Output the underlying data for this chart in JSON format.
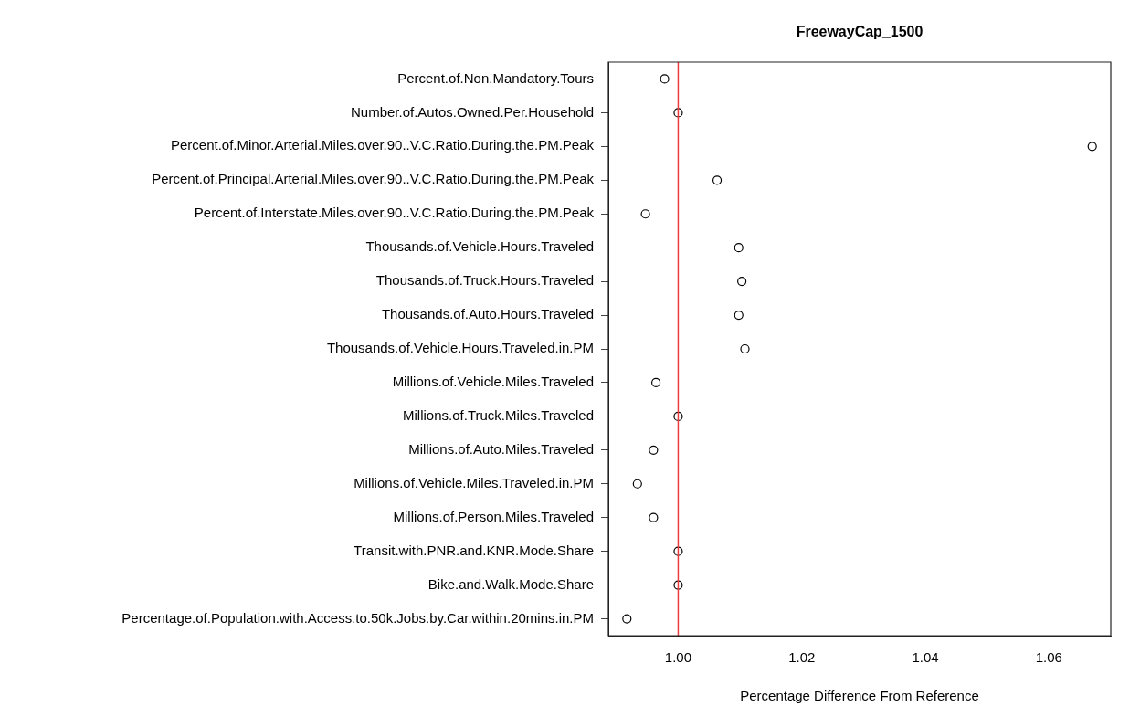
{
  "chart_data": {
    "type": "scatter",
    "orientation": "horizontal",
    "title": "FreewayCap_1500",
    "xlabel": "Percentage Difference From Reference",
    "categories": [
      "Percent.of.Non.Mandatory.Tours",
      "Number.of.Autos.Owned.Per.Household",
      "Percent.of.Minor.Arterial.Miles.over.90..V.C.Ratio.During.the.PM.Peak",
      "Percent.of.Principal.Arterial.Miles.over.90..V.C.Ratio.During.the.PM.Peak",
      "Percent.of.Interstate.Miles.over.90..V.C.Ratio.During.the.PM.Peak",
      "Thousands.of.Vehicle.Hours.Traveled",
      "Thousands.of.Truck.Hours.Traveled",
      "Thousands.of.Auto.Hours.Traveled",
      "Thousands.of.Vehicle.Hours.Traveled.in.PM",
      "Millions.of.Vehicle.Miles.Traveled",
      "Millions.of.Truck.Miles.Traveled",
      "Millions.of.Auto.Miles.Traveled",
      "Millions.of.Vehicle.Miles.Traveled.in.PM",
      "Millions.of.Person.Miles.Traveled",
      "Transit.with.PNR.and.KNR.Mode.Share",
      "Bike.and.Walk.Mode.Share",
      "Percentage.of.Population.with.Access.to.50k.Jobs.by.Car.within.20mins.in.PM"
    ],
    "values": [
      0.9978,
      1.0,
      1.067,
      1.0063,
      0.9947,
      1.0098,
      1.0103,
      1.0098,
      1.0108,
      0.9964,
      1.0,
      0.996,
      0.9934,
      0.996,
      1.0,
      1.0,
      0.9917
    ],
    "color": "#000000",
    "marker": "circle",
    "xlim": [
      0.9887,
      1.07
    ],
    "xticks": [
      {
        "value": 1,
        "label": "1.00"
      },
      {
        "value": 1.02,
        "label": "1.02"
      },
      {
        "value": 1.04,
        "label": "1.04"
      },
      {
        "value": 1.06,
        "label": "1.06"
      }
    ],
    "ref_lines": [
      {
        "axis": "x",
        "value": 1,
        "color": "#ee3b3b"
      }
    ],
    "grid": false,
    "legend": false
  }
}
